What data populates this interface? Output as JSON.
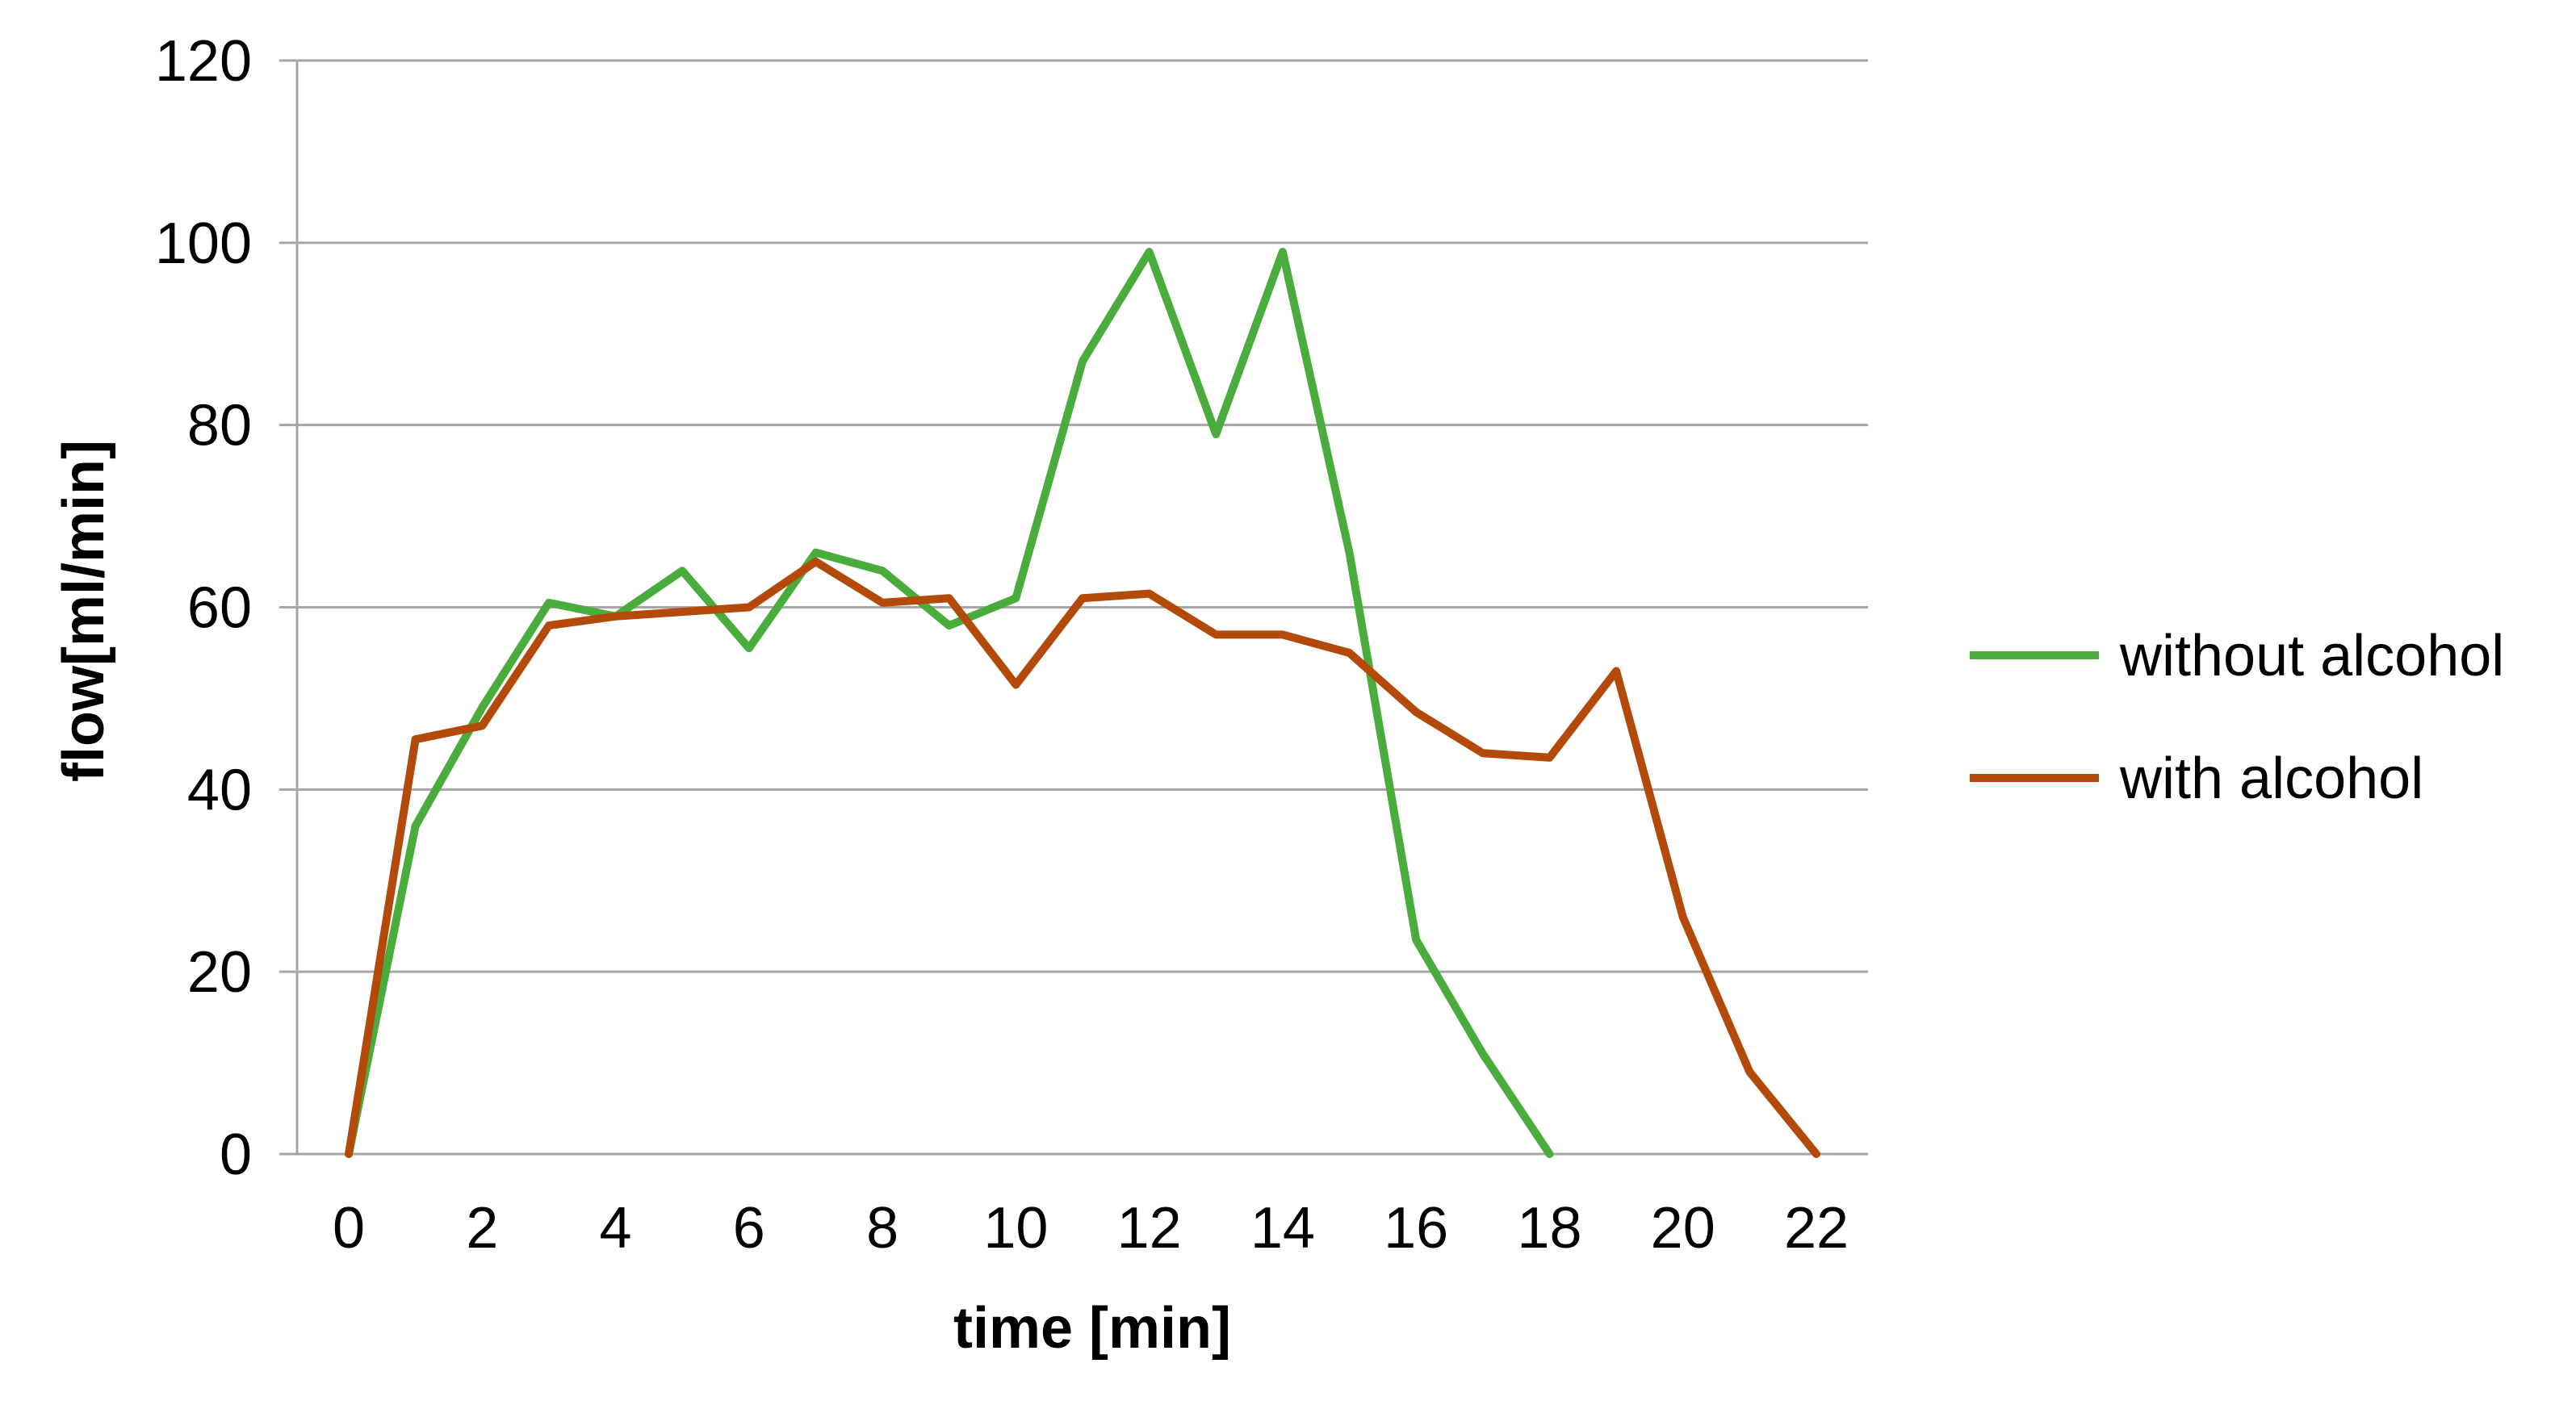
{
  "chart_data": {
    "type": "line",
    "title": "",
    "xlabel": "time [min]",
    "ylabel": "flow[ml/min]",
    "xlim": [
      0,
      22
    ],
    "ylim": [
      0,
      120
    ],
    "x_ticks": [
      0,
      2,
      4,
      6,
      8,
      10,
      12,
      14,
      16,
      18,
      20,
      22
    ],
    "y_ticks": [
      0,
      20,
      40,
      60,
      80,
      100,
      120
    ],
    "grid": "horizontal",
    "legend_position": "right",
    "series": [
      {
        "name": "without alcohol",
        "color": "#4aac3c",
        "x": [
          0,
          1,
          2,
          3,
          4,
          5,
          6,
          7,
          8,
          9,
          10,
          11,
          12,
          13,
          14,
          15,
          16,
          17,
          18
        ],
        "values": [
          0,
          36,
          49,
          60.5,
          59,
          64,
          55.5,
          66,
          64,
          58,
          61,
          87,
          99,
          79,
          99,
          66,
          23.5,
          11,
          0
        ]
      },
      {
        "name": "with alcohol",
        "color": "#b34a0a",
        "x": [
          0,
          1,
          2,
          3,
          4,
          5,
          6,
          7,
          8,
          9,
          10,
          11,
          12,
          13,
          14,
          15,
          16,
          17,
          18,
          19,
          20,
          21,
          22
        ],
        "values": [
          0,
          45.5,
          47,
          58,
          59,
          59.5,
          60,
          65,
          60.5,
          61,
          51.5,
          61,
          61.5,
          57,
          57,
          55,
          48.5,
          44,
          43.5,
          53,
          26,
          9,
          0
        ]
      }
    ]
  }
}
